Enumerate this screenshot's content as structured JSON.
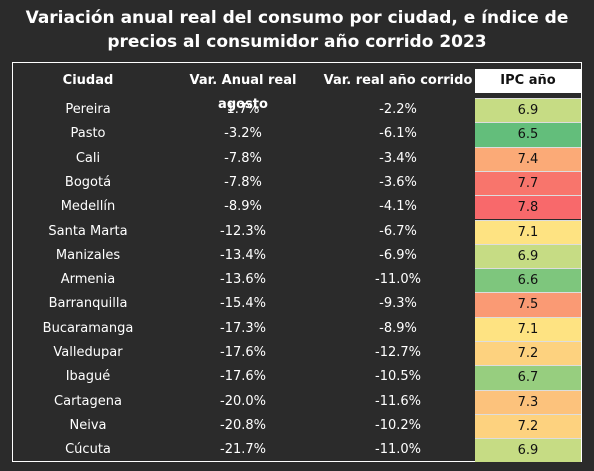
{
  "header": {
    "title": "Variación anual real del consumo por ciudad, e índice de precios al consumidor año corrido 2023"
  },
  "table": {
    "columns": [
      "Ciudad",
      "Var. Anual real agosto",
      "Var. real año corrido",
      "IPC año corrido"
    ],
    "rows": [
      [
        "Pereira",
        "1.7%",
        "-2.2%",
        6.9
      ],
      [
        "Pasto",
        "-3.2%",
        "-6.1%",
        6.5
      ],
      [
        "Cali",
        "-7.8%",
        "-3.4%",
        7.4
      ],
      [
        "Bogotá",
        "-7.8%",
        "-3.6%",
        7.7
      ],
      [
        "Medellín",
        "-8.9%",
        "-4.1%",
        7.8
      ],
      [
        "Santa Marta",
        "-12.3%",
        "-6.7%",
        7.1
      ],
      [
        "Manizales",
        "-13.4%",
        "-6.9%",
        6.9
      ],
      [
        "Armenia",
        "-13.6%",
        "-11.0%",
        6.6
      ],
      [
        "Barranquilla",
        "-15.4%",
        "-9.3%",
        7.5
      ],
      [
        "Bucaramanga",
        "-17.3%",
        "-8.9%",
        7.1
      ],
      [
        "Valledupar",
        "-17.6%",
        "-12.7%",
        7.2
      ],
      [
        "Ibagué",
        "-17.6%",
        "-10.5%",
        6.7
      ],
      [
        "Cartagena",
        "-20.0%",
        "-11.6%",
        7.3
      ],
      [
        "Neiva",
        "-20.8%",
        "-10.2%",
        7.2
      ],
      [
        "Cúcuta",
        "-21.7%",
        "-11.0%",
        6.9
      ]
    ],
    "ipc_colors": [
      "#c6dc84",
      "#63be7b",
      "#fbaa77",
      "#f8756c",
      "#f8696b",
      "#fee382",
      "#c6dc84",
      "#7ec67d",
      "#fa9a74",
      "#fee382",
      "#fdd27f",
      "#97ce7f",
      "#fcc27c",
      "#fdd27f",
      "#c6dc84"
    ]
  }
}
